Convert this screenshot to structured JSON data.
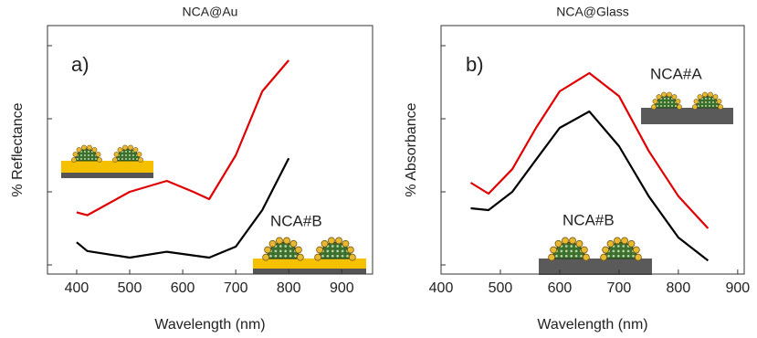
{
  "chart_data": [
    {
      "type": "line",
      "title": "NCA@Au",
      "xlabel": "Wavelength (nm)",
      "ylabel": "% Reflectance",
      "x": [
        400,
        420,
        500,
        570,
        620,
        650,
        700,
        750,
        800
      ],
      "series": [
        {
          "color": "#e00000",
          "values": [
            0.72,
            0.68,
            1.0,
            1.15,
            1.0,
            0.9,
            1.5,
            2.375,
            2.8
          ]
        },
        {
          "color": "#000000",
          "values": [
            0.31,
            0.19,
            0.1,
            0.18,
            0.13,
            0.1,
            0.25,
            0.75,
            1.46
          ]
        }
      ],
      "xlim": [
        345,
        958
      ],
      "xticks": [
        400,
        500,
        600,
        700,
        800,
        900
      ],
      "ylim": [
        -0.125,
        3.275
      ],
      "yticks": [
        0,
        1,
        2,
        3
      ],
      "ytick_labels": false,
      "annotations": [
        "a)",
        "NCA#B"
      ]
    },
    {
      "type": "line",
      "title": "NCA@Glass",
      "xlabel": "Wavelength (nm)",
      "ylabel": "% Absorbance",
      "x": [
        450,
        480,
        520,
        560,
        600,
        650,
        700,
        750,
        800,
        850
      ],
      "series": [
        {
          "color": "#e00000",
          "values": [
            1.125,
            0.975,
            1.31,
            1.875,
            2.375,
            2.625,
            2.31,
            1.56,
            0.94,
            0.5
          ]
        },
        {
          "color": "#000000",
          "values": [
            0.775,
            0.75,
            1.0,
            1.44,
            1.875,
            2.1,
            1.625,
            0.94,
            0.375,
            0.06
          ]
        }
      ],
      "xlim": [
        400,
        911
      ],
      "xticks": [
        400,
        500,
        600,
        700,
        800,
        900
      ],
      "ylim": [
        -0.125,
        3.275
      ],
      "yticks": [
        0,
        1,
        2,
        3
      ],
      "ytick_labels": false,
      "annotations": [
        "b)",
        "NCA#A",
        "NCA#B"
      ]
    }
  ]
}
